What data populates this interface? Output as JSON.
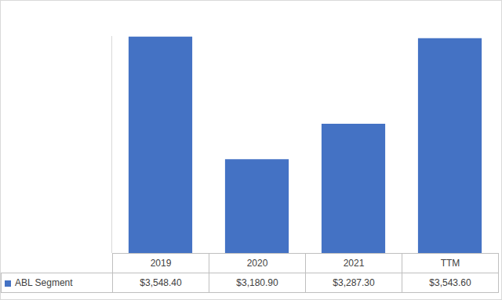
{
  "chart_data": {
    "type": "bar",
    "categories": [
      "2019",
      "2020",
      "2021",
      "TTM"
    ],
    "series": [
      {
        "name": "ABL Segment",
        "color": "#4472c4",
        "values": [
          3548.4,
          3180.9,
          3287.3,
          3543.6
        ],
        "value_labels": [
          "$3,548.40",
          "$3,180.90",
          "$3,287.30",
          "$3,543.60"
        ]
      }
    ],
    "ylim": [
      2900,
      3550
    ],
    "grid": false,
    "tick_labels": false
  }
}
